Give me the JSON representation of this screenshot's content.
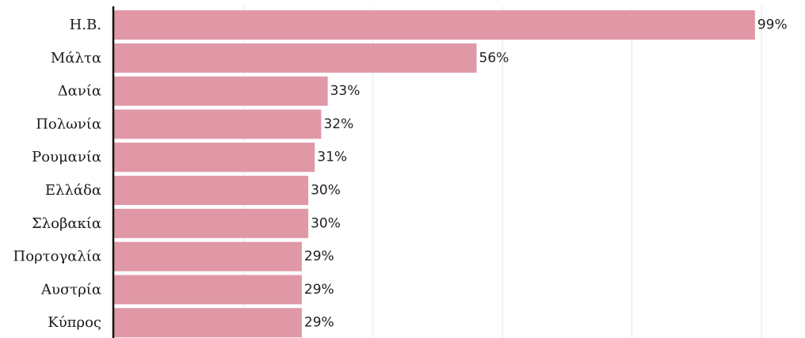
{
  "chart_data": {
    "type": "bar",
    "orientation": "horizontal",
    "categories": [
      "Η.Β.",
      "Μάλτα",
      "Δανία",
      "Πολωνία",
      "Ρουμανία",
      "Ελλάδα",
      "Σλοβακία",
      "Πορτογαλία",
      "Αυστρία",
      "Κύπρος"
    ],
    "values": [
      99,
      56,
      33,
      32,
      31,
      30,
      30,
      29,
      29,
      29
    ],
    "value_labels": [
      "99%",
      "56%",
      "33%",
      "32%",
      "31%",
      "30%",
      "30%",
      "29%",
      "29%",
      "29%"
    ],
    "xlim": [
      0,
      100
    ],
    "grid": true,
    "legend": "none",
    "colors": {
      "bar": "#e098a6",
      "grid": "#e6e6e6",
      "axis": "#111111"
    }
  }
}
